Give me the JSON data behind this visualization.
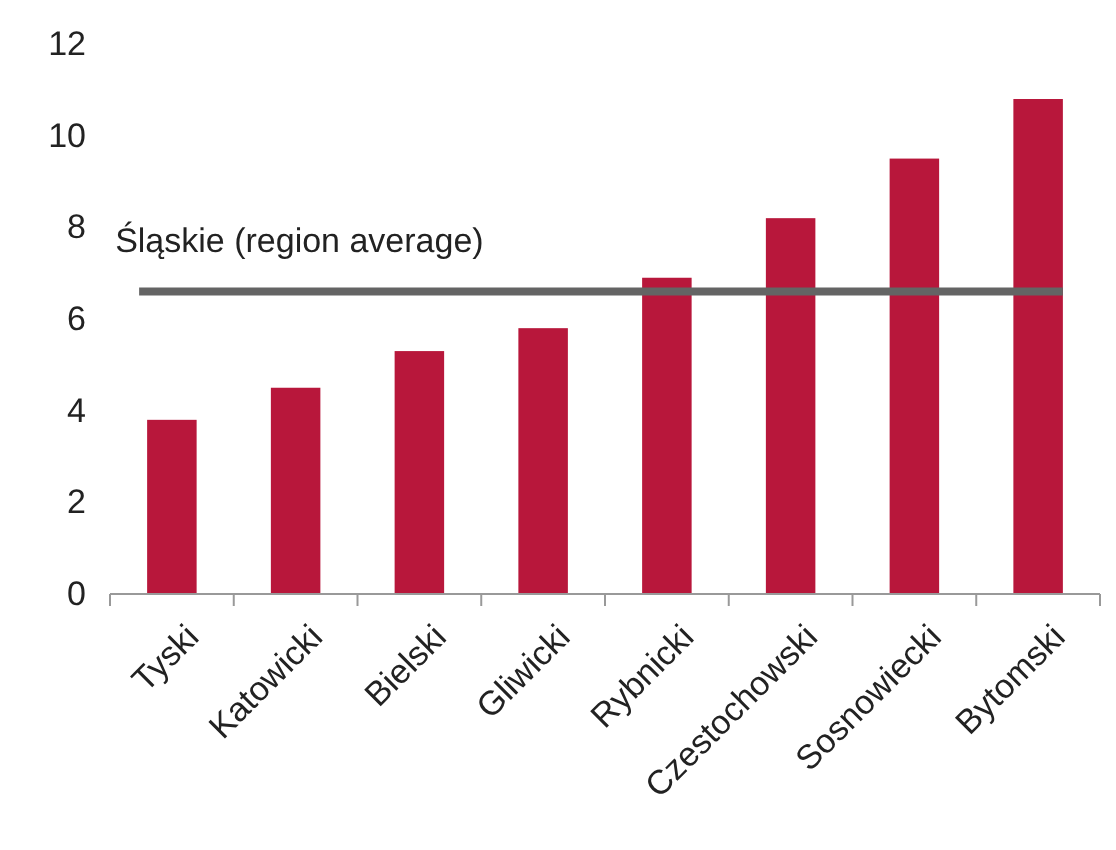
{
  "chart_data": {
    "type": "bar",
    "categories": [
      "Tyski",
      "Katowicki",
      "Bielski",
      "Gliwicki",
      "Rybnicki",
      "Czestochowski",
      "Sosnowiecki",
      "Bytomski"
    ],
    "values": [
      3.8,
      4.5,
      5.3,
      5.8,
      6.9,
      8.2,
      9.5,
      10.8
    ],
    "color": "#b8173b",
    "ylim": [
      0,
      12
    ],
    "yticks": [
      0,
      2,
      4,
      6,
      8,
      10,
      12
    ],
    "grid": false,
    "ref_lines": [
      {
        "axis": "y",
        "value": 6.6,
        "label": "Śląskie (region average)",
        "color": "#646464"
      }
    ]
  }
}
